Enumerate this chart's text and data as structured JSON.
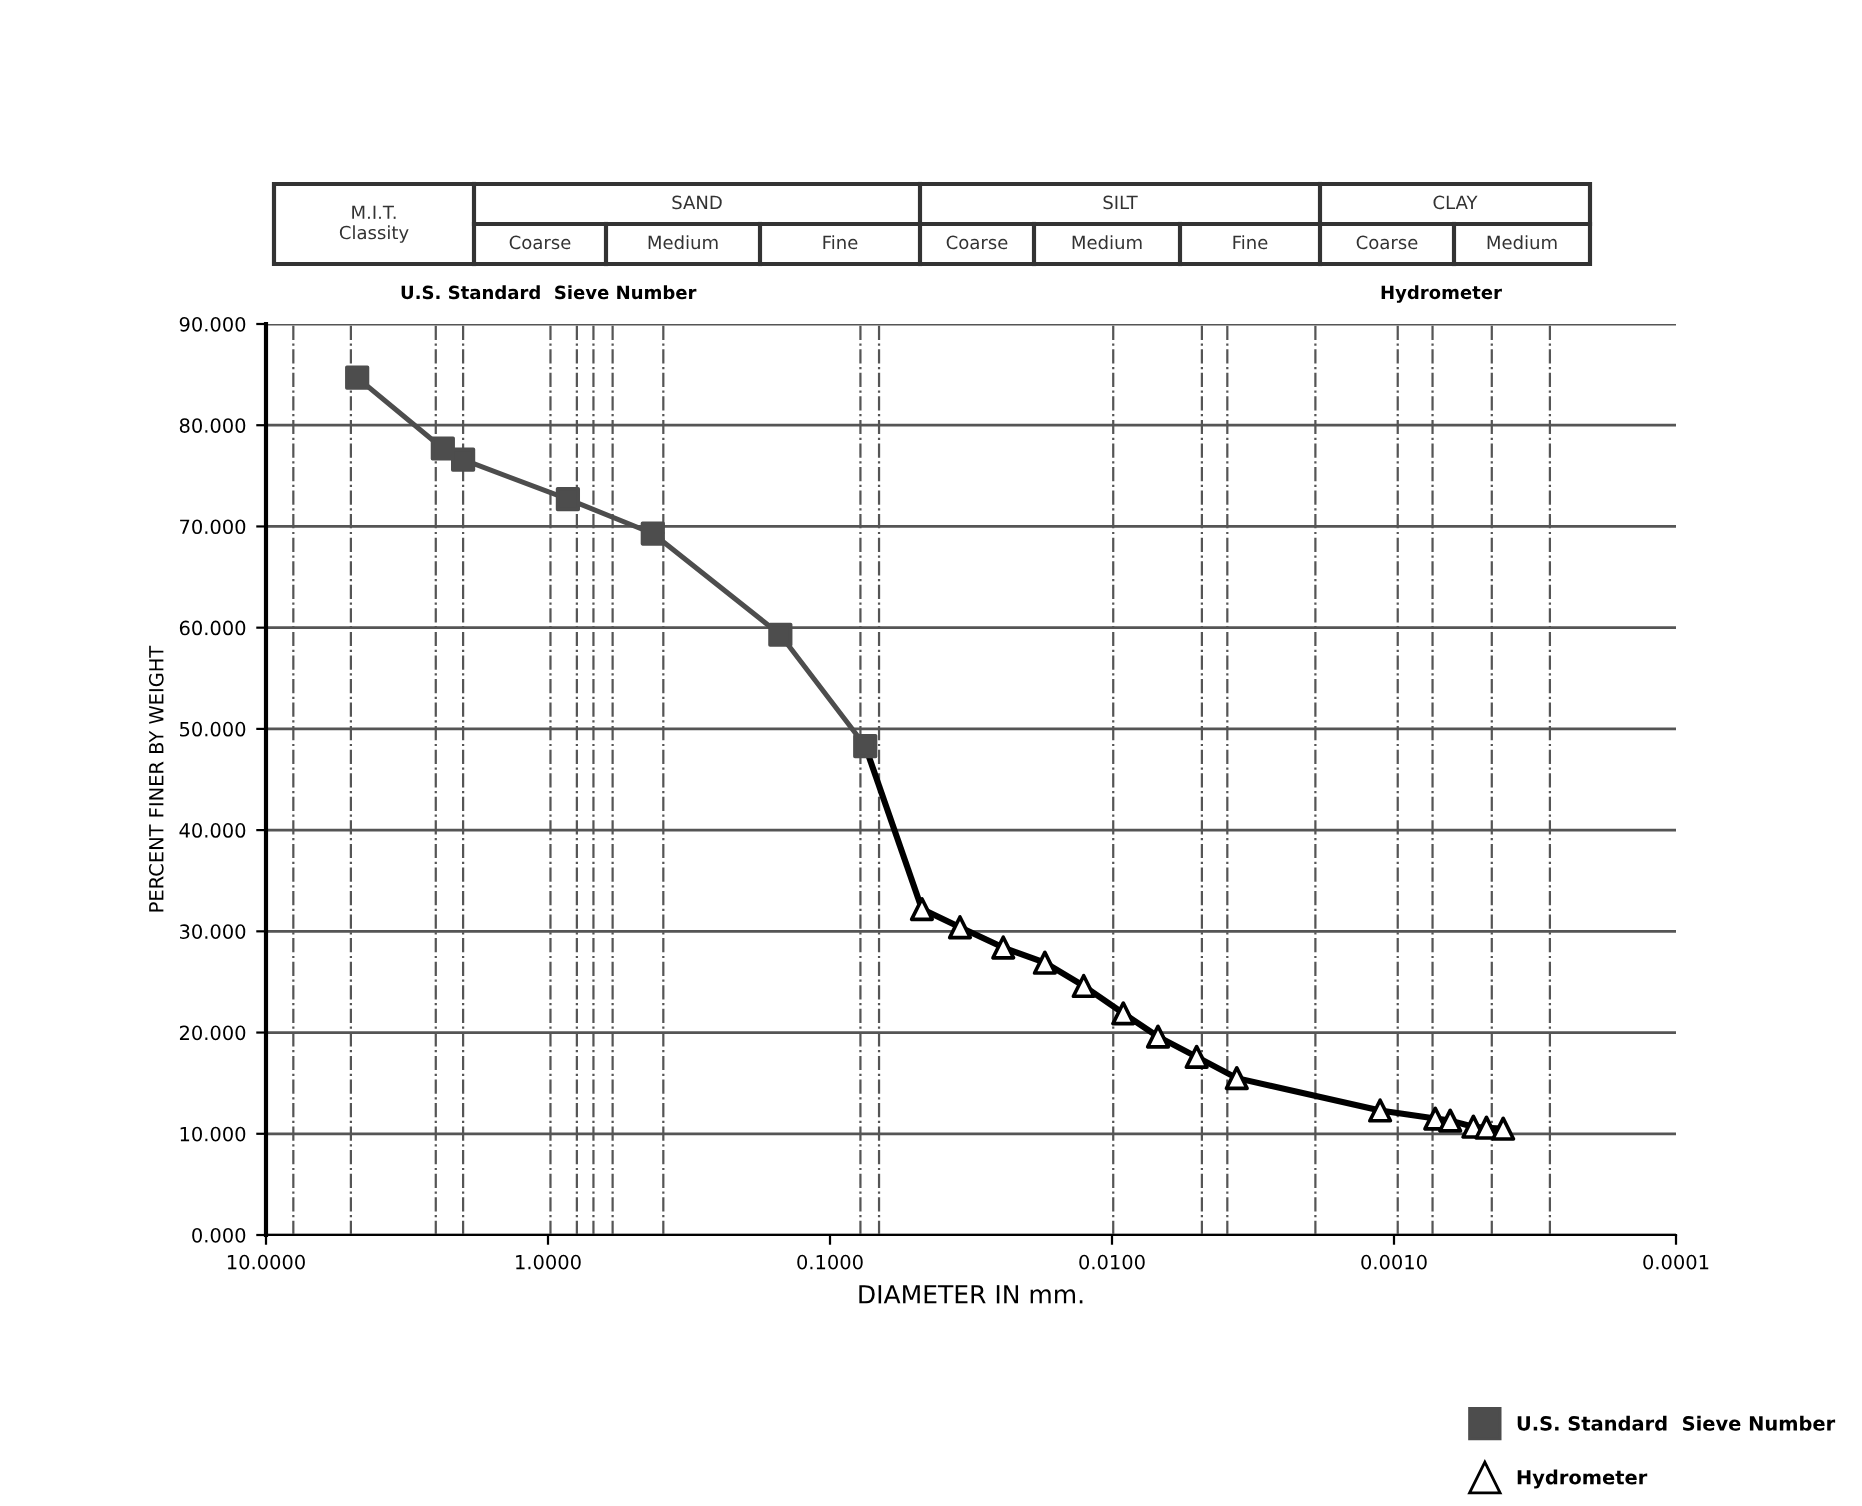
{
  "chart_data": {
    "type": "line",
    "xlabel": "DIAMETER IN mm.",
    "ylabel": "PERCENT FINER BY WEIGHT",
    "log": "x",
    "grid": "y",
    "legend": "bottom right",
    "line_style": "solid",
    "xlim": [
      10,
      0.0001
    ],
    "xticks": [
      {
        "value": 10,
        "label": "10.0000"
      },
      {
        "value": 1,
        "label": "1.0000"
      },
      {
        "value": 0.1,
        "label": "0.1000"
      },
      {
        "value": 0.01,
        "label": "0.0100"
      },
      {
        "value": 0.001,
        "label": "0.0010"
      },
      {
        "value": 0.0001,
        "label": "0.0001"
      }
    ],
    "ylim": [
      0,
      90
    ],
    "yticks": [
      {
        "value": 0,
        "label": "0.000"
      },
      {
        "value": 10,
        "label": "10.000"
      },
      {
        "value": 20,
        "label": "20.000"
      },
      {
        "value": 30,
        "label": "30.000"
      },
      {
        "value": 40,
        "label": "40.000"
      },
      {
        "value": 50,
        "label": "50.000"
      },
      {
        "value": 60,
        "label": "60.000"
      },
      {
        "value": 70,
        "label": "70.000"
      },
      {
        "value": 80,
        "label": "80.000"
      },
      {
        "value": 90,
        "label": "90.000"
      }
    ],
    "series": [
      {
        "name": "U.S. Standard  Sieve Number",
        "color": "#4d4d4d",
        "marker": "square",
        "x": [
          4.75,
          2.36,
          2.0,
          0.85,
          0.425,
          0.15,
          0.075
        ],
        "values": [
          84.7,
          77.7,
          76.6,
          72.7,
          69.3,
          59.3,
          48.3
        ]
      },
      {
        "name": "Hydrometer",
        "color": "#000000",
        "marker": "triangle",
        "x": [
          0.0472,
          0.0346,
          0.0243,
          0.0173,
          0.0126,
          0.00912,
          0.00687,
          0.00501,
          0.00361,
          0.00112,
          0.000714,
          0.000632,
          0.000523,
          0.00047,
          0.00041
        ],
        "values": [
          32.2,
          30.4,
          28.4,
          26.9,
          24.6,
          21.9,
          19.6,
          17.6,
          15.5,
          12.3,
          11.5,
          11.3,
          10.7,
          10.6,
          10.5
        ]
      },
      {
        "color": "#000000",
        "marker": "none",
        "x": [
          0.075,
          0.0472
        ],
        "values": [
          48.3,
          32.2
        ]
      }
    ],
    "ref_lines": [
      {
        "axis": "x",
        "value": 8.0,
        "color": "#555555",
        "line_style": "dashdot"
      },
      {
        "axis": "x",
        "value": 5.0,
        "color": "#555555",
        "line_style": "dashdot"
      },
      {
        "axis": "x",
        "value": 2.5,
        "color": "#555555",
        "line_style": "dashdot"
      },
      {
        "axis": "x",
        "value": 2.0,
        "color": "#555555",
        "line_style": "dashdot"
      },
      {
        "axis": "x",
        "value": 0.98,
        "color": "#555555",
        "line_style": "dashdot"
      },
      {
        "axis": "x",
        "value": 0.79,
        "color": "#555555",
        "line_style": "dashdot"
      },
      {
        "axis": "x",
        "value": 0.69,
        "color": "#555555",
        "line_style": "dashdot"
      },
      {
        "axis": "x",
        "value": 0.59,
        "color": "#555555",
        "line_style": "dashdot"
      },
      {
        "axis": "x",
        "value": 0.39,
        "color": "#555555",
        "line_style": "dashdot"
      },
      {
        "axis": "x",
        "value": 0.078,
        "color": "#555555",
        "line_style": "dashdot"
      },
      {
        "axis": "x",
        "value": 0.067,
        "color": "#555555",
        "line_style": "dashdot"
      },
      {
        "axis": "x",
        "value": 0.0099,
        "color": "#555555",
        "line_style": "dashdot"
      },
      {
        "axis": "x",
        "value": 0.0048,
        "color": "#555555",
        "line_style": "dashdot"
      },
      {
        "axis": "x",
        "value": 0.0039,
        "color": "#555555",
        "line_style": "dashdot"
      },
      {
        "axis": "x",
        "value": 0.0019,
        "color": "#555555",
        "line_style": "dashdot"
      },
      {
        "axis": "x",
        "value": 0.00097,
        "color": "#555555",
        "line_style": "dashdot"
      },
      {
        "axis": "x",
        "value": 0.00073,
        "color": "#555555",
        "line_style": "dashdot"
      },
      {
        "axis": "x",
        "value": 0.00045,
        "color": "#555555",
        "line_style": "dashdot"
      },
      {
        "axis": "x",
        "value": 0.00028,
        "color": "#555555",
        "line_style": "dashdot"
      }
    ],
    "annotations": [
      "M.I.T.\nClassity",
      "SAND",
      "SILT",
      "CLAY",
      "Coarse",
      "Medium",
      "Fine",
      "Coarse",
      "Medium",
      "Fine",
      "Coarse",
      "Medium",
      "U.S. Standard  Sieve Number",
      "Hydrometer"
    ]
  }
}
